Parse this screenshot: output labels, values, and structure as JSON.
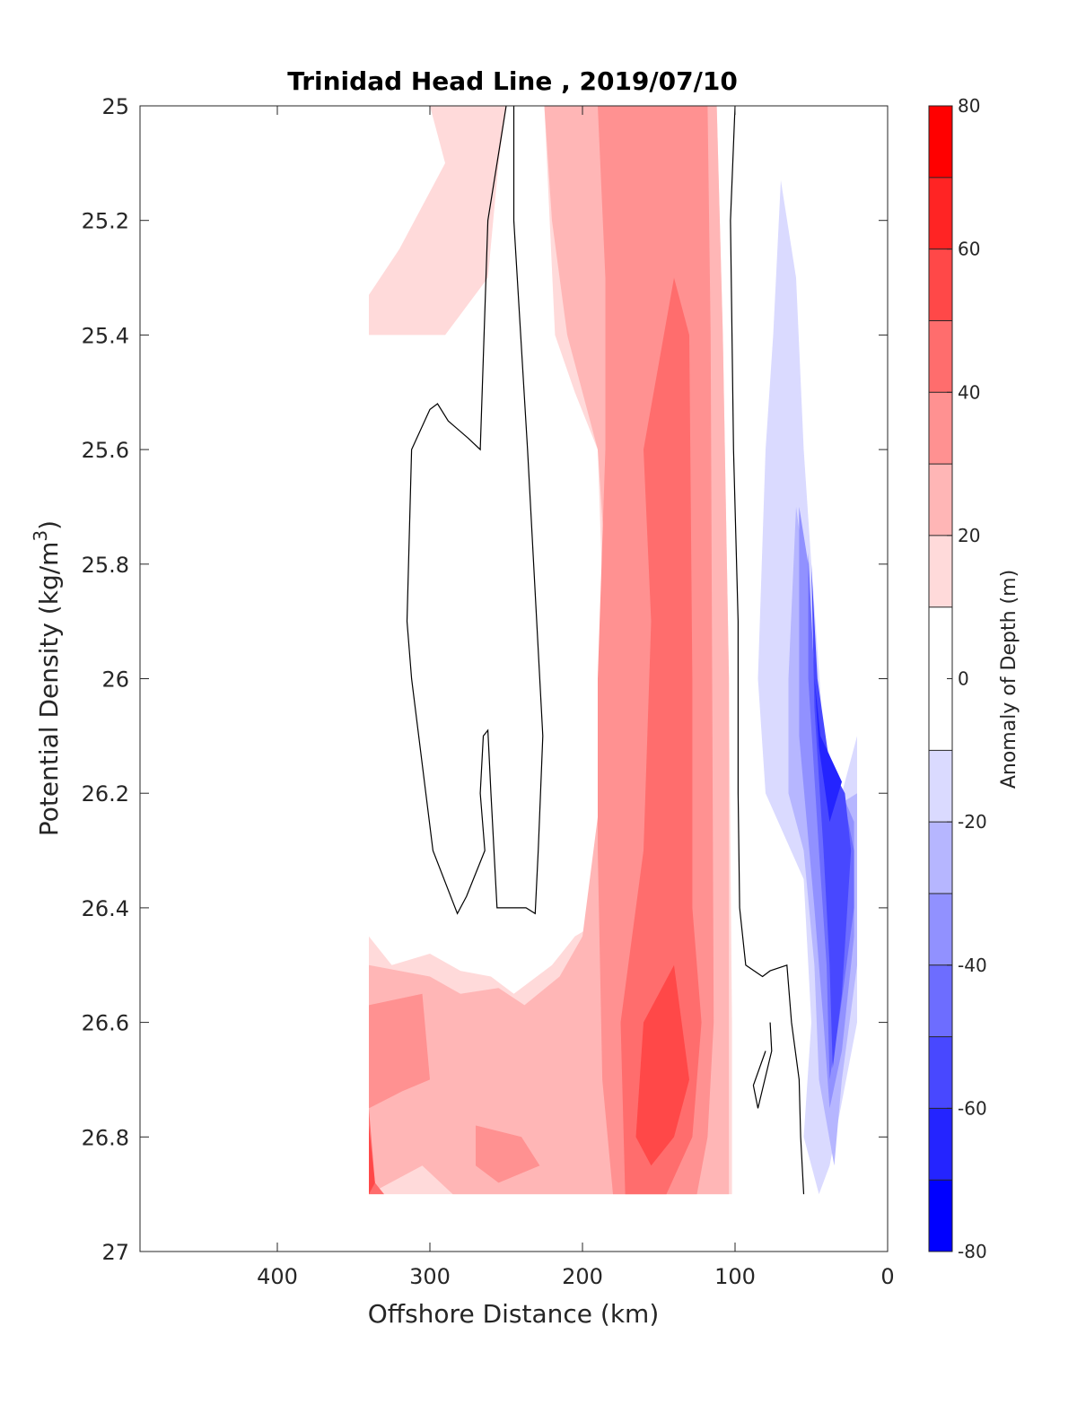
{
  "chart_data": {
    "type": "heatmap",
    "subtype": "filled-contour",
    "title": "Trinidad Head Line , 2019/07/10",
    "xlabel": "Offshore Distance (km)",
    "ylabel_main": "Potential Density (kg/m",
    "ylabel_sup": "3",
    "ylabel_close": ")",
    "colorbar_label": "Anomaly of Depth (m)",
    "x_axis": {
      "range": [
        490,
        0
      ],
      "reversed": true,
      "ticks": [
        400,
        300,
        200,
        100,
        0
      ],
      "tick_labels": [
        "400",
        "300",
        "200",
        "100",
        "0"
      ]
    },
    "y_axis": {
      "range": [
        25,
        27
      ],
      "reversed": true,
      "ticks": [
        25,
        25.2,
        25.4,
        25.6,
        25.8,
        26,
        26.2,
        26.4,
        26.6,
        26.8,
        27
      ],
      "tick_labels": [
        "25",
        "25.2",
        "25.4",
        "25.6",
        "25.8",
        "26",
        "26.2",
        "26.4",
        "26.6",
        "26.8",
        "27"
      ]
    },
    "colorbar": {
      "range": [
        -80,
        80
      ],
      "levels": [
        -80,
        -70,
        -60,
        -50,
        -40,
        -30,
        -20,
        -10,
        10,
        20,
        30,
        40,
        50,
        60,
        70,
        80
      ],
      "tick_values": [
        80,
        60,
        40,
        20,
        0,
        -20,
        -40,
        -60,
        -80
      ],
      "tick_labels": [
        "80",
        "60",
        "40",
        "20",
        "0",
        "-20",
        "-40",
        "-60",
        "-80"
      ],
      "bands": [
        {
          "from": -80,
          "to": -70,
          "color": "#0000ff"
        },
        {
          "from": -70,
          "to": -60,
          "color": "#2424ff"
        },
        {
          "from": -60,
          "to": -50,
          "color": "#4848ff"
        },
        {
          "from": -50,
          "to": -40,
          "color": "#6d6dff"
        },
        {
          "from": -40,
          "to": -30,
          "color": "#9191ff"
        },
        {
          "from": -30,
          "to": -20,
          "color": "#b6b6ff"
        },
        {
          "from": -20,
          "to": -10,
          "color": "#dadaff"
        },
        {
          "from": -10,
          "to": 10,
          "color": "#ffffff"
        },
        {
          "from": 10,
          "to": 20,
          "color": "#ffdada"
        },
        {
          "from": 20,
          "to": 30,
          "color": "#ffb6b6"
        },
        {
          "from": 30,
          "to": 40,
          "color": "#ff9191"
        },
        {
          "from": 40,
          "to": 50,
          "color": "#ff6d6d"
        },
        {
          "from": 50,
          "to": 60,
          "color": "#ff4848"
        },
        {
          "from": 60,
          "to": 70,
          "color": "#ff2424"
        },
        {
          "from": 70,
          "to": 80,
          "color": "#ff0000"
        }
      ]
    },
    "data_extent": {
      "x": [
        20,
        340
      ],
      "y": [
        25,
        26.9
      ]
    },
    "regions": [
      {
        "level": 10,
        "color": "#ffdada",
        "points": [
          [
            340,
            25.0
          ],
          [
            112,
            25.0
          ],
          [
            108,
            25.4
          ],
          [
            104,
            26.0
          ],
          [
            102,
            26.6
          ],
          [
            102,
            26.9
          ],
          [
            340,
            26.9
          ]
        ]
      },
      {
        "level": 10,
        "color": "#ffffff",
        "points": [
          [
            340,
            25.0
          ],
          [
            300,
            25.0
          ],
          [
            290,
            25.1
          ],
          [
            320,
            25.25
          ],
          [
            340,
            25.33
          ]
        ]
      },
      {
        "level": 10,
        "color": "#ffffff",
        "points": [
          [
            250,
            25.0
          ],
          [
            225,
            25.0
          ],
          [
            218,
            25.4
          ],
          [
            205,
            25.5
          ],
          [
            190,
            25.6
          ],
          [
            185,
            26.0
          ],
          [
            180,
            26.4
          ],
          [
            186,
            26.42
          ],
          [
            205,
            26.45
          ],
          [
            220,
            26.5
          ],
          [
            245,
            26.55
          ],
          [
            260,
            26.52
          ],
          [
            280,
            26.51
          ],
          [
            300,
            26.48
          ],
          [
            325,
            26.5
          ],
          [
            340,
            26.45
          ],
          [
            340,
            25.4
          ],
          [
            330,
            25.4
          ],
          [
            290,
            25.4
          ],
          [
            262,
            25.3
          ],
          [
            255,
            25.1
          ]
        ]
      },
      {
        "level": 20,
        "color": "#ffb6b6",
        "points": [
          [
            225,
            25.0
          ],
          [
            112,
            25.0
          ],
          [
            108,
            25.4
          ],
          [
            104,
            26.0
          ],
          [
            104,
            26.6
          ],
          [
            104,
            26.9
          ],
          [
            285,
            26.9
          ],
          [
            305,
            26.85
          ],
          [
            340,
            26.9
          ],
          [
            340,
            26.5
          ],
          [
            300,
            26.52
          ],
          [
            280,
            26.55
          ],
          [
            255,
            26.54
          ],
          [
            238,
            26.57
          ],
          [
            215,
            26.52
          ],
          [
            200,
            26.45
          ],
          [
            188,
            26.2
          ],
          [
            185,
            25.8
          ],
          [
            190,
            25.6
          ],
          [
            210,
            25.4
          ],
          [
            220,
            25.2
          ]
        ]
      },
      {
        "level": 30,
        "color": "#ff9191",
        "points": [
          [
            190,
            25.0
          ],
          [
            118,
            25.0
          ],
          [
            116,
            25.4
          ],
          [
            115,
            26.0
          ],
          [
            114,
            26.6
          ],
          [
            118,
            26.8
          ],
          [
            125,
            26.9
          ],
          [
            180,
            26.9
          ],
          [
            187,
            26.7
          ],
          [
            190,
            26.3
          ],
          [
            190,
            26.0
          ],
          [
            185,
            25.6
          ],
          [
            185,
            25.3
          ]
        ]
      },
      {
        "level": 30,
        "color": "#ff9191",
        "points": [
          [
            340,
            26.57
          ],
          [
            305,
            26.55
          ],
          [
            300,
            26.7
          ],
          [
            318,
            26.72
          ],
          [
            340,
            26.75
          ]
        ]
      },
      {
        "level": 30,
        "color": "#ff9191",
        "points": [
          [
            270,
            26.78
          ],
          [
            240,
            26.8
          ],
          [
            228,
            26.85
          ],
          [
            255,
            26.88
          ],
          [
            270,
            26.85
          ]
        ]
      },
      {
        "level": 40,
        "color": "#ff6d6d",
        "points": [
          [
            160,
            25.6
          ],
          [
            140,
            25.3
          ],
          [
            130,
            25.4
          ],
          [
            128,
            26.0
          ],
          [
            128,
            26.4
          ],
          [
            122,
            26.6
          ],
          [
            128,
            26.8
          ],
          [
            145,
            26.9
          ],
          [
            172,
            26.9
          ],
          [
            175,
            26.6
          ],
          [
            160,
            26.3
          ],
          [
            155,
            25.9
          ]
        ]
      },
      {
        "level": 40,
        "color": "#ff6d6d",
        "points": [
          [
            340,
            26.75
          ],
          [
            336,
            26.88
          ],
          [
            330,
            26.9
          ],
          [
            340,
            26.9
          ]
        ]
      },
      {
        "level": 50,
        "color": "#ff4848",
        "points": [
          [
            150,
            26.55
          ],
          [
            140,
            26.5
          ],
          [
            130,
            26.7
          ],
          [
            140,
            26.8
          ],
          [
            155,
            26.85
          ],
          [
            165,
            26.8
          ],
          [
            160,
            26.6
          ]
        ]
      },
      {
        "level": 50,
        "color": "#ff4848",
        "points": [
          [
            340,
            26.78
          ],
          [
            336,
            26.88
          ],
          [
            340,
            26.9
          ]
        ]
      },
      {
        "level": -20,
        "color": "#dadaff",
        "points": [
          [
            70,
            25.13
          ],
          [
            60,
            25.3
          ],
          [
            55,
            25.6
          ],
          [
            50,
            25.8
          ],
          [
            42,
            26.1
          ],
          [
            30,
            26.2
          ],
          [
            20,
            26.1
          ],
          [
            20,
            26.6
          ],
          [
            38,
            26.85
          ],
          [
            45,
            26.9
          ],
          [
            55,
            26.8
          ],
          [
            50,
            26.6
          ],
          [
            55,
            26.35
          ],
          [
            80,
            26.2
          ],
          [
            85,
            26.0
          ],
          [
            80,
            25.6
          ],
          [
            75,
            25.4
          ]
        ]
      },
      {
        "level": -30,
        "color": "#b6b6ff",
        "points": [
          [
            60,
            25.7
          ],
          [
            55,
            25.8
          ],
          [
            50,
            26.0
          ],
          [
            45,
            26.15
          ],
          [
            32,
            26.22
          ],
          [
            20,
            26.2
          ],
          [
            20,
            26.5
          ],
          [
            30,
            26.7
          ],
          [
            35,
            26.85
          ],
          [
            45,
            26.7
          ],
          [
            48,
            26.5
          ],
          [
            55,
            26.3
          ],
          [
            65,
            26.2
          ],
          [
            65,
            26.0
          ]
        ]
      },
      {
        "level": -40,
        "color": "#9191ff",
        "points": [
          [
            58,
            25.7
          ],
          [
            52,
            25.8
          ],
          [
            48,
            26.0
          ],
          [
            42,
            26.15
          ],
          [
            30,
            26.2
          ],
          [
            22,
            26.25
          ],
          [
            22,
            26.45
          ],
          [
            30,
            26.65
          ],
          [
            38,
            26.75
          ],
          [
            42,
            26.6
          ],
          [
            48,
            26.4
          ],
          [
            58,
            26.1
          ]
        ]
      },
      {
        "level": -50,
        "color": "#6d6dff",
        "points": [
          [
            52,
            25.78
          ],
          [
            48,
            26.0
          ],
          [
            40,
            26.15
          ],
          [
            28,
            26.22
          ],
          [
            22,
            26.3
          ],
          [
            22,
            26.4
          ],
          [
            32,
            26.6
          ],
          [
            38,
            26.7
          ],
          [
            40,
            26.5
          ],
          [
            45,
            26.3
          ],
          [
            52,
            26.0
          ]
        ]
      },
      {
        "level": -60,
        "color": "#4848ff",
        "points": [
          [
            50,
            25.8
          ],
          [
            46,
            26.0
          ],
          [
            38,
            26.15
          ],
          [
            28,
            26.2
          ],
          [
            24,
            26.3
          ],
          [
            30,
            26.55
          ],
          [
            36,
            26.68
          ],
          [
            38,
            26.5
          ],
          [
            42,
            26.3
          ],
          [
            48,
            26.05
          ]
        ]
      },
      {
        "level": -70,
        "color": "#2424ff",
        "points": [
          [
            48,
            26.0
          ],
          [
            44,
            26.1
          ],
          [
            30,
            26.18
          ],
          [
            38,
            26.25
          ],
          [
            45,
            26.12
          ]
        ]
      }
    ],
    "zero_contours": [
      {
        "points": [
          [
            250,
            25.0
          ],
          [
            262,
            25.2
          ],
          [
            267,
            25.6
          ],
          [
            275,
            25.58
          ],
          [
            288,
            25.55
          ],
          [
            295,
            25.52
          ],
          [
            300,
            25.53
          ],
          [
            312,
            25.6
          ],
          [
            313,
            25.7
          ],
          [
            315,
            25.9
          ],
          [
            312,
            26.0
          ],
          [
            298,
            26.3
          ],
          [
            282,
            26.41
          ],
          [
            276,
            26.38
          ],
          [
            264,
            26.3
          ],
          [
            267,
            26.2
          ],
          [
            265,
            26.1
          ],
          [
            262,
            26.09
          ],
          [
            260,
            26.2
          ],
          [
            256,
            26.4
          ],
          [
            237,
            26.4
          ],
          [
            231,
            26.41
          ],
          [
            229,
            26.3
          ],
          [
            226,
            26.1
          ],
          [
            228,
            26.0
          ],
          [
            236,
            25.6
          ],
          [
            245,
            25.2
          ],
          [
            245,
            25.0
          ]
        ]
      },
      {
        "points": [
          [
            100,
            25.0
          ],
          [
            103,
            25.2
          ],
          [
            101,
            25.6
          ],
          [
            98,
            25.9
          ],
          [
            98,
            26.2
          ],
          [
            97,
            26.4
          ],
          [
            93,
            26.5
          ],
          [
            82,
            26.52
          ],
          [
            77,
            26.51
          ],
          [
            66,
            26.5
          ],
          [
            63,
            26.6
          ],
          [
            58,
            26.7
          ],
          [
            57,
            26.8
          ],
          [
            55,
            26.9
          ]
        ]
      },
      {
        "points": [
          [
            77,
            26.6
          ],
          [
            76,
            26.65
          ],
          [
            85,
            26.75
          ],
          [
            88,
            26.71
          ],
          [
            80,
            26.65
          ]
        ]
      }
    ]
  }
}
